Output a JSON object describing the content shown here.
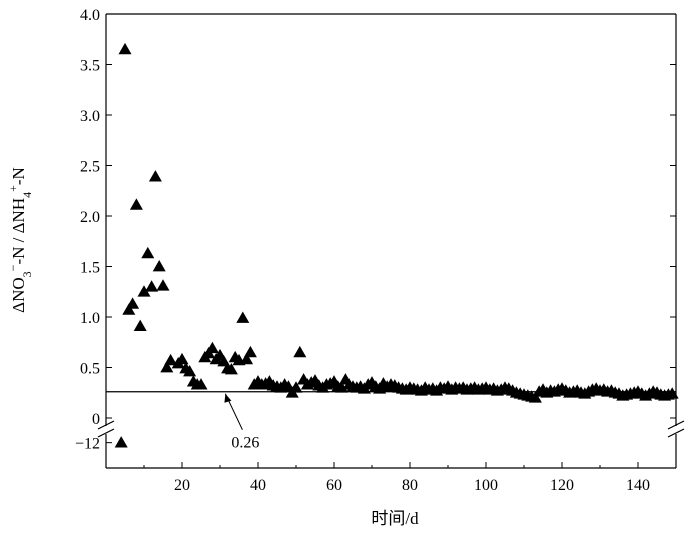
{
  "chart_data": {
    "type": "scatter",
    "xlabel": "时间/d",
    "ylabel": {
      "parts": [
        "ΔNO",
        "3",
        "−",
        "-N / ΔNH",
        "4",
        "+",
        "-N"
      ]
    },
    "xlim": [
      0,
      150
    ],
    "ylim_main": [
      0,
      4.0
    ],
    "ylim_broken": [
      -13,
      -11.5
    ],
    "x_ticks": [
      20,
      40,
      60,
      80,
      100,
      120,
      140
    ],
    "x_tick_labels": [
      "20",
      "40",
      "60",
      "80",
      "100",
      "120",
      "140"
    ],
    "y_ticks_main": [
      0,
      0.5,
      1.0,
      1.5,
      2.0,
      2.5,
      3.0,
      3.5,
      4.0
    ],
    "y_tick_labels_main": [
      "0",
      "0.5",
      "1.0",
      "1.5",
      "2.0",
      "2.5",
      "3.0",
      "3.5",
      "4.0"
    ],
    "y_ticks_broken": [
      -12
    ],
    "y_tick_labels_broken": [
      "−12"
    ],
    "axis_break": true,
    "reference_line": {
      "y": 0.26,
      "label": "0.26",
      "annotation_x": 33
    },
    "marker": "filled-triangle",
    "grid": false,
    "series": [
      {
        "points": [
          [
            4,
            -12.0
          ],
          [
            5,
            3.65
          ],
          [
            6,
            1.07
          ],
          [
            7,
            1.13
          ],
          [
            8,
            2.11
          ],
          [
            9,
            0.91
          ],
          [
            10,
            1.25
          ],
          [
            11,
            1.63
          ],
          [
            12,
            1.3
          ],
          [
            13,
            2.39
          ],
          [
            14,
            1.5
          ],
          [
            15,
            1.31
          ],
          [
            16,
            0.5
          ],
          [
            17,
            0.57
          ],
          [
            19,
            0.54
          ],
          [
            20,
            0.58
          ],
          [
            21,
            0.49
          ],
          [
            22,
            0.46
          ],
          [
            23,
            0.36
          ],
          [
            24,
            0.33
          ],
          [
            25,
            0.33
          ],
          [
            26,
            0.6
          ],
          [
            27,
            0.64
          ],
          [
            28,
            0.69
          ],
          [
            29,
            0.58
          ],
          [
            30,
            0.62
          ],
          [
            31,
            0.56
          ],
          [
            32,
            0.49
          ],
          [
            33,
            0.48
          ],
          [
            34,
            0.6
          ],
          [
            35,
            0.57
          ],
          [
            36,
            0.99
          ],
          [
            37,
            0.58
          ],
          [
            38,
            0.65
          ],
          [
            39,
            0.33
          ],
          [
            40,
            0.36
          ],
          [
            41,
            0.33
          ],
          [
            42,
            0.34
          ],
          [
            43,
            0.36
          ],
          [
            44,
            0.32
          ],
          [
            45,
            0.31
          ],
          [
            46,
            0.3
          ],
          [
            47,
            0.33
          ],
          [
            48,
            0.31
          ],
          [
            49,
            0.25
          ],
          [
            50,
            0.3
          ],
          [
            51,
            0.65
          ],
          [
            52,
            0.38
          ],
          [
            53,
            0.33
          ],
          [
            54,
            0.35
          ],
          [
            55,
            0.37
          ],
          [
            56,
            0.32
          ],
          [
            57,
            0.3
          ],
          [
            58,
            0.33
          ],
          [
            59,
            0.34
          ],
          [
            60,
            0.36
          ],
          [
            61,
            0.31
          ],
          [
            62,
            0.3
          ],
          [
            63,
            0.38
          ],
          [
            64,
            0.33
          ],
          [
            65,
            0.31
          ],
          [
            66,
            0.3
          ],
          [
            67,
            0.31
          ],
          [
            68,
            0.29
          ],
          [
            69,
            0.33
          ],
          [
            70,
            0.35
          ],
          [
            71,
            0.31
          ],
          [
            72,
            0.29
          ],
          [
            73,
            0.34
          ],
          [
            74,
            0.31
          ],
          [
            75,
            0.33
          ],
          [
            76,
            0.32
          ],
          [
            77,
            0.3
          ],
          [
            78,
            0.29
          ],
          [
            79,
            0.28
          ],
          [
            80,
            0.3
          ],
          [
            81,
            0.29
          ],
          [
            82,
            0.28
          ],
          [
            83,
            0.27
          ],
          [
            84,
            0.3
          ],
          [
            85,
            0.28
          ],
          [
            86,
            0.29
          ],
          [
            87,
            0.27
          ],
          [
            88,
            0.3
          ],
          [
            89,
            0.29
          ],
          [
            90,
            0.31
          ],
          [
            91,
            0.28
          ],
          [
            92,
            0.3
          ],
          [
            93,
            0.29
          ],
          [
            94,
            0.3
          ],
          [
            95,
            0.28
          ],
          [
            96,
            0.29
          ],
          [
            97,
            0.3
          ],
          [
            98,
            0.28
          ],
          [
            99,
            0.29
          ],
          [
            100,
            0.3
          ],
          [
            101,
            0.28
          ],
          [
            102,
            0.29
          ],
          [
            103,
            0.27
          ],
          [
            104,
            0.28
          ],
          [
            105,
            0.3
          ],
          [
            106,
            0.29
          ],
          [
            107,
            0.27
          ],
          [
            108,
            0.25
          ],
          [
            109,
            0.24
          ],
          [
            110,
            0.23
          ],
          [
            111,
            0.22
          ],
          [
            112,
            0.21
          ],
          [
            113,
            0.2
          ],
          [
            114,
            0.26
          ],
          [
            115,
            0.28
          ],
          [
            116,
            0.25
          ],
          [
            117,
            0.27
          ],
          [
            118,
            0.26
          ],
          [
            119,
            0.28
          ],
          [
            120,
            0.29
          ],
          [
            121,
            0.27
          ],
          [
            122,
            0.25
          ],
          [
            123,
            0.26
          ],
          [
            124,
            0.27
          ],
          [
            125,
            0.25
          ],
          [
            126,
            0.24
          ],
          [
            127,
            0.26
          ],
          [
            128,
            0.28
          ],
          [
            129,
            0.29
          ],
          [
            130,
            0.27
          ],
          [
            131,
            0.28
          ],
          [
            132,
            0.26
          ],
          [
            133,
            0.27
          ],
          [
            134,
            0.25
          ],
          [
            135,
            0.24
          ],
          [
            136,
            0.22
          ],
          [
            137,
            0.23
          ],
          [
            138,
            0.24
          ],
          [
            139,
            0.25
          ],
          [
            140,
            0.26
          ],
          [
            141,
            0.24
          ],
          [
            142,
            0.22
          ],
          [
            143,
            0.24
          ],
          [
            144,
            0.26
          ],
          [
            145,
            0.25
          ],
          [
            146,
            0.23
          ],
          [
            147,
            0.22
          ],
          [
            148,
            0.23
          ],
          [
            149,
            0.24
          ]
        ]
      }
    ]
  }
}
